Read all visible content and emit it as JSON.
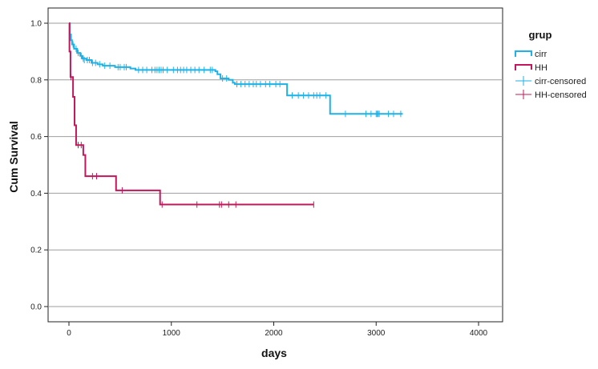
{
  "chart_data": {
    "type": "line",
    "subtype": "kaplan-meier",
    "xlabel": "days",
    "ylabel": "Cum Survival",
    "xlim": [
      0,
      4000
    ],
    "ylim": [
      0,
      1
    ],
    "xticks": [
      "0",
      "1000",
      "2000",
      "3000",
      "4000"
    ],
    "yticks": [
      "0.0",
      "0.2",
      "0.4",
      "0.6",
      "0.8",
      "1.0"
    ],
    "xtick_values": [
      0,
      1000,
      2000,
      3000,
      4000
    ],
    "ytick_values": [
      0,
      0.2,
      0.4,
      0.6,
      0.8,
      1.0
    ],
    "grid": "horizontal",
    "legend_title": "grup",
    "legend_position": "top-right outside",
    "series": [
      {
        "name": "cirr",
        "color": "#1fb2e8",
        "steps": [
          [
            0,
            1.0
          ],
          [
            10,
            0.96
          ],
          [
            20,
            0.94
          ],
          [
            30,
            0.925
          ],
          [
            50,
            0.91
          ],
          [
            80,
            0.895
          ],
          [
            110,
            0.885
          ],
          [
            130,
            0.875
          ],
          [
            170,
            0.87
          ],
          [
            220,
            0.86
          ],
          [
            280,
            0.855
          ],
          [
            330,
            0.85
          ],
          [
            450,
            0.845
          ],
          [
            600,
            0.84
          ],
          [
            650,
            0.835
          ],
          [
            1430,
            0.83
          ],
          [
            1450,
            0.82
          ],
          [
            1480,
            0.805
          ],
          [
            1560,
            0.8
          ],
          [
            1600,
            0.79
          ],
          [
            1620,
            0.785
          ],
          [
            2130,
            0.745
          ],
          [
            2550,
            0.68
          ],
          [
            3260,
            0.68
          ]
        ],
        "censored": [
          [
            40,
            0.925
          ],
          [
            70,
            0.91
          ],
          [
            90,
            0.895
          ],
          [
            120,
            0.885
          ],
          [
            140,
            0.875
          ],
          [
            150,
            0.87
          ],
          [
            180,
            0.87
          ],
          [
            200,
            0.87
          ],
          [
            230,
            0.86
          ],
          [
            260,
            0.86
          ],
          [
            300,
            0.855
          ],
          [
            350,
            0.85
          ],
          [
            400,
            0.85
          ],
          [
            480,
            0.845
          ],
          [
            500,
            0.845
          ],
          [
            540,
            0.845
          ],
          [
            560,
            0.845
          ],
          [
            680,
            0.835
          ],
          [
            720,
            0.835
          ],
          [
            760,
            0.835
          ],
          [
            810,
            0.835
          ],
          [
            840,
            0.835
          ],
          [
            860,
            0.835
          ],
          [
            880,
            0.835
          ],
          [
            900,
            0.835
          ],
          [
            920,
            0.835
          ],
          [
            960,
            0.835
          ],
          [
            1020,
            0.835
          ],
          [
            1060,
            0.835
          ],
          [
            1090,
            0.835
          ],
          [
            1120,
            0.835
          ],
          [
            1150,
            0.835
          ],
          [
            1190,
            0.835
          ],
          [
            1230,
            0.835
          ],
          [
            1270,
            0.835
          ],
          [
            1320,
            0.835
          ],
          [
            1380,
            0.835
          ],
          [
            1400,
            0.835
          ],
          [
            1500,
            0.805
          ],
          [
            1540,
            0.805
          ],
          [
            1640,
            0.785
          ],
          [
            1680,
            0.785
          ],
          [
            1720,
            0.785
          ],
          [
            1760,
            0.785
          ],
          [
            1800,
            0.785
          ],
          [
            1830,
            0.785
          ],
          [
            1870,
            0.785
          ],
          [
            1920,
            0.785
          ],
          [
            1960,
            0.785
          ],
          [
            2020,
            0.785
          ],
          [
            2060,
            0.785
          ],
          [
            2180,
            0.745
          ],
          [
            2240,
            0.745
          ],
          [
            2290,
            0.745
          ],
          [
            2340,
            0.745
          ],
          [
            2390,
            0.745
          ],
          [
            2420,
            0.745
          ],
          [
            2450,
            0.745
          ],
          [
            2510,
            0.745
          ],
          [
            2700,
            0.68
          ],
          [
            2900,
            0.68
          ],
          [
            2950,
            0.68
          ],
          [
            3000,
            0.68
          ],
          [
            3010,
            0.68
          ],
          [
            3020,
            0.68
          ],
          [
            3030,
            0.68
          ],
          [
            3120,
            0.68
          ],
          [
            3170,
            0.68
          ],
          [
            3240,
            0.68
          ]
        ]
      },
      {
        "name": "HH",
        "color": "#c2185b",
        "steps": [
          [
            0,
            1.0
          ],
          [
            5,
            0.9
          ],
          [
            15,
            0.81
          ],
          [
            40,
            0.74
          ],
          [
            55,
            0.64
          ],
          [
            70,
            0.57
          ],
          [
            140,
            0.535
          ],
          [
            160,
            0.46
          ],
          [
            460,
            0.41
          ],
          [
            890,
            0.36
          ],
          [
            2390,
            0.36
          ]
        ],
        "censored": [
          [
            20,
            0.81
          ],
          [
            90,
            0.57
          ],
          [
            120,
            0.57
          ],
          [
            230,
            0.46
          ],
          [
            270,
            0.46
          ],
          [
            520,
            0.41
          ],
          [
            910,
            0.36
          ],
          [
            1250,
            0.36
          ],
          [
            1470,
            0.36
          ],
          [
            1490,
            0.36
          ],
          [
            1560,
            0.36
          ],
          [
            1630,
            0.36
          ],
          [
            2390,
            0.36
          ]
        ]
      }
    ],
    "legend": [
      {
        "label": "cirr",
        "style": "step",
        "color": "#1fb2e8"
      },
      {
        "label": "HH",
        "style": "step",
        "color": "#c2185b"
      },
      {
        "label": "cirr-censored",
        "style": "censor",
        "color": "#1fb2e8"
      },
      {
        "label": "HH-censored",
        "style": "censor",
        "color": "#c2185b"
      }
    ]
  }
}
